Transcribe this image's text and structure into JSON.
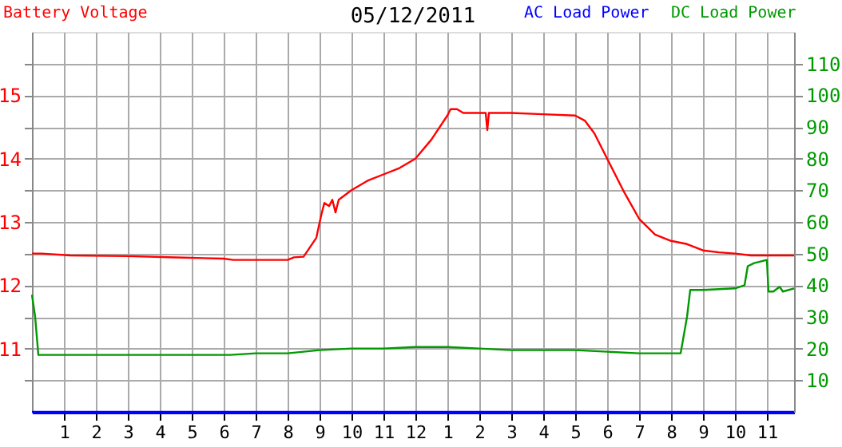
{
  "chart_data": {
    "type": "line",
    "title": "05/12/2011",
    "xlim": [
      "2011-05-12T00:00",
      "2011-05-12T23:51"
    ],
    "xticks": [
      {
        "value": "2011-05-12T01:00",
        "label": "1"
      },
      {
        "value": "2011-05-12T02:00",
        "label": "2"
      },
      {
        "value": "2011-05-12T03:00",
        "label": "3"
      },
      {
        "value": "2011-05-12T04:00",
        "label": "4"
      },
      {
        "value": "2011-05-12T05:00",
        "label": "5"
      },
      {
        "value": "2011-05-12T06:00",
        "label": "6"
      },
      {
        "value": "2011-05-12T07:00",
        "label": "7"
      },
      {
        "value": "2011-05-12T08:00",
        "label": "8"
      },
      {
        "value": "2011-05-12T09:00",
        "label": "9"
      },
      {
        "value": "2011-05-12T10:00",
        "label": "10"
      },
      {
        "value": "2011-05-12T11:00",
        "label": "11"
      },
      {
        "value": "2011-05-12T12:00",
        "label": "12"
      },
      {
        "value": "2011-05-12T13:00",
        "label": "1"
      },
      {
        "value": "2011-05-12T14:00",
        "label": "2"
      },
      {
        "value": "2011-05-12T15:00",
        "label": "3"
      },
      {
        "value": "2011-05-12T16:00",
        "label": "4"
      },
      {
        "value": "2011-05-12T17:00",
        "label": "5"
      },
      {
        "value": "2011-05-12T18:00",
        "label": "6"
      },
      {
        "value": "2011-05-12T19:00",
        "label": "7"
      },
      {
        "value": "2011-05-12T20:00",
        "label": "8"
      },
      {
        "value": "2011-05-12T21:00",
        "label": "9"
      },
      {
        "value": "2011-05-12T22:00",
        "label": "10"
      },
      {
        "value": "2011-05-12T23:00",
        "label": "11"
      }
    ],
    "ylim": [
      10,
      16
    ],
    "yticks": [
      {
        "value": 10.5,
        "label": null
      },
      11,
      {
        "value": 11.5,
        "label": null
      },
      12,
      {
        "value": 12.5,
        "label": null
      },
      13,
      {
        "value": 13.5,
        "label": null
      },
      14,
      {
        "value": 14.5,
        "label": null
      },
      15,
      {
        "value": 15.5,
        "label": null
      }
    ],
    "y2lim": [
      0,
      120
    ],
    "y2ticks": [
      10,
      20,
      30,
      40,
      50,
      60,
      70,
      80,
      90,
      100,
      110
    ],
    "grid": true,
    "legend": "top right",
    "marker": "none",
    "line_style": "solid",
    "series": [
      {
        "name": "Battery Voltage",
        "color": "#ff0000",
        "axis": "y",
        "x": [
          "2011-05-12T00:00",
          "2011-05-12T00:18",
          "2011-05-12T01:12",
          "2011-05-12T03:00",
          "2011-05-12T04:30",
          "2011-05-12T06:00",
          "2011-05-12T06:18",
          "2011-05-12T07:30",
          "2011-05-12T08:00",
          "2011-05-12T08:12",
          "2011-05-12T08:30",
          "2011-05-12T08:54",
          "2011-05-12T09:03",
          "2011-05-12T09:09",
          "2011-05-12T09:18",
          "2011-05-12T09:24",
          "2011-05-12T09:30",
          "2011-05-12T09:36",
          "2011-05-12T10:00",
          "2011-05-12T10:30",
          "2011-05-12T11:00",
          "2011-05-12T11:30",
          "2011-05-12T12:00",
          "2011-05-12T12:30",
          "2011-05-12T13:00",
          "2011-05-12T13:06",
          "2011-05-12T13:18",
          "2011-05-12T13:30",
          "2011-05-12T14:12",
          "2011-05-12T14:15",
          "2011-05-12T14:18",
          "2011-05-12T15:00",
          "2011-05-12T16:00",
          "2011-05-12T17:00",
          "2011-05-12T17:18",
          "2011-05-12T17:36",
          "2011-05-12T18:00",
          "2011-05-12T18:30",
          "2011-05-12T19:00",
          "2011-05-12T19:30",
          "2011-05-12T20:00",
          "2011-05-12T20:30",
          "2011-05-12T21:00",
          "2011-05-12T21:30",
          "2011-05-12T22:00",
          "2011-05-12T22:30",
          "2011-05-12T23:00",
          "2011-05-12T23:51"
        ],
        "values": [
          12.5,
          12.5,
          12.47,
          12.46,
          12.44,
          12.42,
          12.4,
          12.4,
          12.4,
          12.44,
          12.45,
          12.75,
          13.1,
          13.3,
          13.25,
          13.35,
          13.15,
          13.35,
          13.5,
          13.65,
          13.75,
          13.85,
          14.0,
          14.3,
          14.68,
          14.78,
          14.78,
          14.72,
          14.72,
          14.45,
          14.72,
          14.72,
          14.7,
          14.68,
          14.6,
          14.4,
          14.0,
          13.5,
          13.05,
          12.8,
          12.7,
          12.65,
          12.55,
          12.52,
          12.5,
          12.47,
          12.47,
          12.47
        ]
      },
      {
        "name": "AC Load Power",
        "color": "#0000ff",
        "axis": "y2",
        "x": [
          "2011-05-12T00:00",
          "2011-05-12T23:51"
        ],
        "values": [
          0,
          0
        ]
      },
      {
        "name": "DC Load Power",
        "color": "#009900",
        "axis": "y2",
        "x": [
          "2011-05-12T00:00",
          "2011-05-12T00:06",
          "2011-05-12T00:12",
          "2011-05-12T03:00",
          "2011-05-12T06:12",
          "2011-05-12T07:00",
          "2011-05-12T08:00",
          "2011-05-12T09:00",
          "2011-05-12T10:00",
          "2011-05-12T11:00",
          "2011-05-12T12:00",
          "2011-05-12T13:00",
          "2011-05-12T14:00",
          "2011-05-12T15:00",
          "2011-05-12T16:00",
          "2011-05-12T17:00",
          "2011-05-12T18:00",
          "2011-05-12T19:00",
          "2011-05-12T20:18",
          "2011-05-12T20:30",
          "2011-05-12T20:36",
          "2011-05-12T20:42",
          "2011-05-12T21:00",
          "2011-05-12T22:00",
          "2011-05-12T22:18",
          "2011-05-12T22:24",
          "2011-05-12T22:36",
          "2011-05-12T23:00",
          "2011-05-12T23:03",
          "2011-05-12T23:12",
          "2011-05-12T23:24",
          "2011-05-12T23:30",
          "2011-05-12T23:51"
        ],
        "values": [
          37,
          30,
          18,
          18,
          18,
          18.5,
          18.5,
          19.5,
          20,
          20,
          20.5,
          20.5,
          20,
          19.5,
          19.5,
          19.5,
          19,
          18.5,
          18.5,
          30,
          38.5,
          38.5,
          38.5,
          39,
          40,
          46,
          47,
          48,
          38,
          38,
          39.5,
          38,
          39
        ]
      }
    ]
  }
}
